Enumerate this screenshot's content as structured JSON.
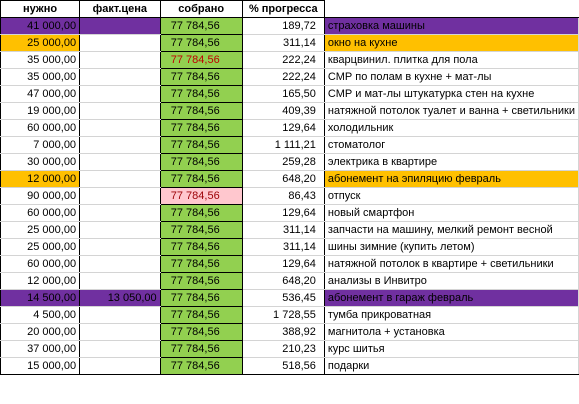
{
  "headers": {
    "need": "нужно",
    "fact_price": "факт.цена",
    "collected": "собрано",
    "progress": "% прогресса"
  },
  "colors": {
    "purple": "#7030a0",
    "orange": "#ffc000",
    "green": "#92d050",
    "pink": "#ffc7ce",
    "red_text": "#c00000"
  },
  "rows": [
    {
      "need": "41 000,00",
      "fact": "",
      "collected": "77 784,56",
      "progress": "189,72",
      "desc": "страховка машины",
      "highlight": "purple"
    },
    {
      "need": "25 000,00",
      "fact": "",
      "collected": "77 784,56",
      "progress": "311,14",
      "desc": "окно на кухне",
      "highlight": "orange"
    },
    {
      "need": "35 000,00",
      "fact": "",
      "collected": "77 784,56",
      "progress": "222,24",
      "desc": "кварцвинил. плитка для пола",
      "collected_style": "red-text"
    },
    {
      "need": "35 000,00",
      "fact": "",
      "collected": "77 784,56",
      "progress": "222,24",
      "desc": "СМР по полам в кухне + мат-лы"
    },
    {
      "need": "47 000,00",
      "fact": "",
      "collected": "77 784,56",
      "progress": "165,50",
      "desc": "СМР и мат-лы штукатурка стен на кухне"
    },
    {
      "need": "19 000,00",
      "fact": "",
      "collected": "77 784,56",
      "progress": "409,39",
      "desc": "натяжной потолок туалет и ванна + светильники"
    },
    {
      "need": "60 000,00",
      "fact": "",
      "collected": "77 784,56",
      "progress": "129,64",
      "desc": "холодильник"
    },
    {
      "need": "7 000,00",
      "fact": "",
      "collected": "77 784,56",
      "progress": "1 111,21",
      "desc": "стоматолог"
    },
    {
      "need": "30 000,00",
      "fact": "",
      "collected": "77 784,56",
      "progress": "259,28",
      "desc": "электрика в квартире"
    },
    {
      "need": "12 000,00",
      "fact": "",
      "collected": "77 784,56",
      "progress": "648,20",
      "desc": "абонемент на эпиляцию февраль",
      "highlight": "orange"
    },
    {
      "need": "90 000,00",
      "fact": "",
      "collected": "77 784,56",
      "progress": "86,43",
      "desc": "отпуск",
      "collected_style": "pink"
    },
    {
      "need": "60 000,00",
      "fact": "",
      "collected": "77 784,56",
      "progress": "129,64",
      "desc": "новый смартфон"
    },
    {
      "need": "25 000,00",
      "fact": "",
      "collected": "77 784,56",
      "progress": "311,14",
      "desc": "запчасти на машину, мелкий ремонт весной"
    },
    {
      "need": "25 000,00",
      "fact": "",
      "collected": "77 784,56",
      "progress": "311,14",
      "desc": "шины зимние (купить летом)"
    },
    {
      "need": "60 000,00",
      "fact": "",
      "collected": "77 784,56",
      "progress": "129,64",
      "desc": "натяжной потолок в квартире + светильники"
    },
    {
      "need": "12 000,00",
      "fact": "",
      "collected": "77 784,56",
      "progress": "648,20",
      "desc": "анализы в Инвитро"
    },
    {
      "need": "14 500,00",
      "fact": "13 050,00",
      "collected": "77 784,56",
      "progress": "536,45",
      "desc": "абонемент в гараж февраль",
      "highlight": "purple"
    },
    {
      "need": "4 500,00",
      "fact": "",
      "collected": "77 784,56",
      "progress": "1 728,55",
      "desc": "тумба прикроватная"
    },
    {
      "need": "20 000,00",
      "fact": "",
      "collected": "77 784,56",
      "progress": "388,92",
      "desc": "магнитола + установка"
    },
    {
      "need": "37 000,00",
      "fact": "",
      "collected": "77 784,56",
      "progress": "210,23",
      "desc": "курс шитья"
    },
    {
      "need": "15 000,00",
      "fact": "",
      "collected": "77 784,56",
      "progress": "518,56",
      "desc": "подарки"
    }
  ]
}
